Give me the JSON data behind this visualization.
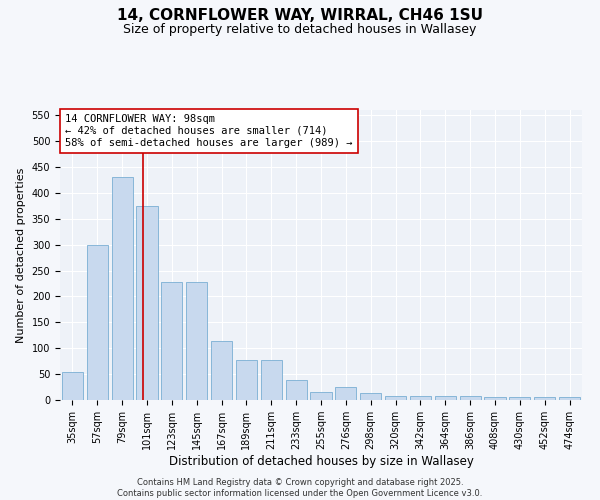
{
  "title": "14, CORNFLOWER WAY, WIRRAL, CH46 1SU",
  "subtitle": "Size of property relative to detached houses in Wallasey",
  "xlabel": "Distribution of detached houses by size in Wallasey",
  "ylabel": "Number of detached properties",
  "categories": [
    "35sqm",
    "57sqm",
    "79sqm",
    "101sqm",
    "123sqm",
    "145sqm",
    "167sqm",
    "189sqm",
    "211sqm",
    "233sqm",
    "255sqm",
    "276sqm",
    "298sqm",
    "320sqm",
    "342sqm",
    "364sqm",
    "386sqm",
    "408sqm",
    "430sqm",
    "452sqm",
    "474sqm"
  ],
  "values": [
    55,
    300,
    430,
    375,
    228,
    228,
    113,
    78,
    78,
    38,
    15,
    25,
    13,
    8,
    8,
    8,
    7,
    5,
    5,
    5,
    5
  ],
  "bar_color": "#c8d9ee",
  "bar_edge_color": "#7aafd4",
  "vline_color": "#cc0000",
  "vline_x": 2.82,
  "annotation_text": "14 CORNFLOWER WAY: 98sqm\n← 42% of detached houses are smaller (714)\n58% of semi-detached houses are larger (989) →",
  "annotation_box_color": "#ffffff",
  "annotation_box_edge_color": "#cc0000",
  "ylim": [
    0,
    560
  ],
  "yticks": [
    0,
    50,
    100,
    150,
    200,
    250,
    300,
    350,
    400,
    450,
    500,
    550
  ],
  "bg_color": "#eef2f8",
  "grid_color": "#ffffff",
  "footer": "Contains HM Land Registry data © Crown copyright and database right 2025.\nContains public sector information licensed under the Open Government Licence v3.0.",
  "title_fontsize": 11,
  "subtitle_fontsize": 9,
  "xlabel_fontsize": 8.5,
  "ylabel_fontsize": 8,
  "tick_fontsize": 7,
  "annotation_fontsize": 7.5,
  "footer_fontsize": 6
}
